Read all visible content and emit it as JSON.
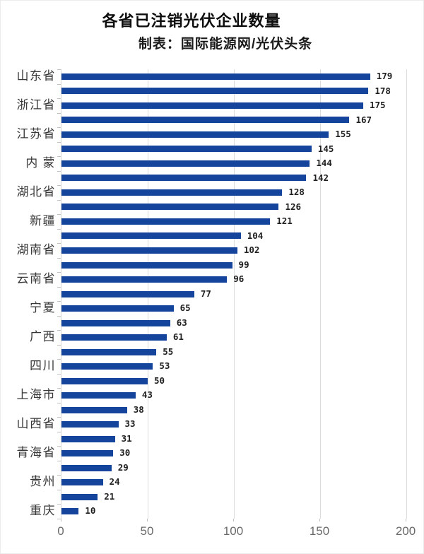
{
  "header": {
    "title": "各省已注销光伏企业数量",
    "subtitle": "制表：国际能源网/光伏头条"
  },
  "chart_data": {
    "type": "bar",
    "orientation": "horizontal",
    "title": "各省已注销光伏企业数量",
    "subtitle": "制表：国际能源网/光伏头条",
    "xlabel": "",
    "ylabel": "",
    "xlim": [
      0,
      200
    ],
    "x_ticks": [
      0,
      50,
      100,
      150,
      200
    ],
    "grid": "vertical",
    "legend": "none",
    "bar_color": "#14449c",
    "note": "labels shown on every other bar (axis label interval = 2)",
    "rows": [
      {
        "label": "山东省",
        "value": 179
      },
      {
        "label": "",
        "value": 178
      },
      {
        "label": "浙江省",
        "value": 175
      },
      {
        "label": "",
        "value": 167
      },
      {
        "label": "江苏省",
        "value": 155
      },
      {
        "label": "",
        "value": 145
      },
      {
        "label": "内 蒙",
        "value": 144
      },
      {
        "label": "",
        "value": 142
      },
      {
        "label": "湖北省",
        "value": 128
      },
      {
        "label": "",
        "value": 126
      },
      {
        "label": "新疆",
        "value": 121
      },
      {
        "label": "",
        "value": 104
      },
      {
        "label": "湖南省",
        "value": 102
      },
      {
        "label": "",
        "value": 99
      },
      {
        "label": "云南省",
        "value": 96
      },
      {
        "label": "",
        "value": 77
      },
      {
        "label": "宁夏",
        "value": 65
      },
      {
        "label": "",
        "value": 63
      },
      {
        "label": "广西",
        "value": 61
      },
      {
        "label": "",
        "value": 55
      },
      {
        "label": "四川",
        "value": 53
      },
      {
        "label": "",
        "value": 50
      },
      {
        "label": "上海市",
        "value": 43
      },
      {
        "label": "",
        "value": 38
      },
      {
        "label": "山西省",
        "value": 33
      },
      {
        "label": "",
        "value": 31
      },
      {
        "label": "青海省",
        "value": 30
      },
      {
        "label": "",
        "value": 29
      },
      {
        "label": "贵州",
        "value": 24
      },
      {
        "label": "",
        "value": 21
      },
      {
        "label": "重庆",
        "value": 10
      }
    ]
  },
  "colors": {
    "bar": "#14449c",
    "gridline": "#dcdcdc",
    "axis_line": "#d9d9d9",
    "axis_text": "#6a6a6a",
    "category_text": "#383838",
    "value_text": "#1f1f1f",
    "title_text": "#0d0d0d"
  }
}
